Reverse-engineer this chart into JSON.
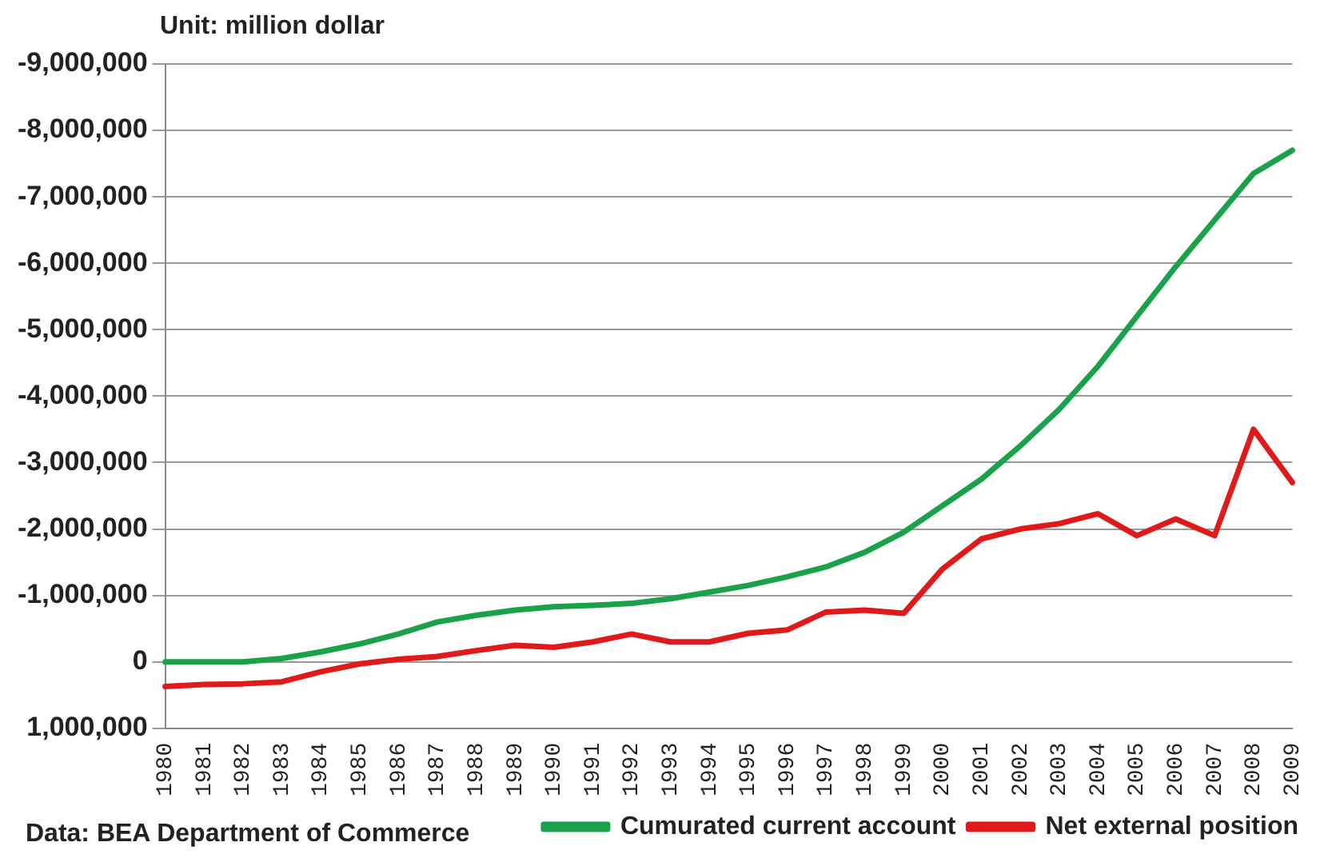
{
  "chart_data": {
    "type": "line",
    "ylabel": "Unit: million dollar",
    "annotations": [
      "Data: BEA Department of Commerce"
    ],
    "categories": [
      "1980",
      "1981",
      "1982",
      "1983",
      "1984",
      "1985",
      "1986",
      "1987",
      "1988",
      "1989",
      "1990",
      "1991",
      "1992",
      "1993",
      "1994",
      "1995",
      "1996",
      "1997",
      "1998",
      "1999",
      "2000",
      "2001",
      "2002",
      "2003",
      "2004",
      "2005",
      "2006",
      "2007",
      "2008",
      "2009"
    ],
    "series": [
      {
        "name": "Cumurated current account",
        "color": "#1aa24a",
        "values": [
          0,
          0,
          0,
          -50000,
          -150000,
          -270000,
          -420000,
          -600000,
          -700000,
          -780000,
          -830000,
          -850000,
          -880000,
          -950000,
          -1050000,
          -1150000,
          -1280000,
          -1430000,
          -1650000,
          -1950000,
          -2350000,
          -2750000,
          -3250000,
          -3800000,
          -4450000,
          -5200000,
          -5950000,
          -6650000,
          -7350000,
          -7700000
        ]
      },
      {
        "name": "Net external position",
        "color": "#e01a1a",
        "values": [
          370000,
          340000,
          330000,
          300000,
          150000,
          30000,
          -40000,
          -80000,
          -170000,
          -250000,
          -220000,
          -300000,
          -420000,
          -300000,
          -300000,
          -430000,
          -480000,
          -750000,
          -780000,
          -730000,
          -1400000,
          -1850000,
          -2000000,
          -2080000,
          -2230000,
          -1900000,
          -2150000,
          -1900000,
          -3500000,
          -2700000
        ]
      }
    ],
    "ylim": [
      1000000,
      -9000000
    ],
    "yticks": [
      {
        "value": 1000000,
        "label": "1,000,000"
      },
      0,
      {
        "value": -1000000,
        "label": "-1,000,000"
      },
      {
        "value": -2000000,
        "label": "-2,000,000"
      },
      {
        "value": -3000000,
        "label": "-3,000,000"
      },
      {
        "value": -4000000,
        "label": "-4,000,000"
      },
      {
        "value": -5000000,
        "label": "-5,000,000"
      },
      {
        "value": -6000000,
        "label": "-6,000,000"
      },
      {
        "value": -7000000,
        "label": "-7,000,000"
      },
      {
        "value": -8000000,
        "label": "-8,000,000"
      },
      {
        "value": -9000000,
        "label": "-9,000,000"
      }
    ],
    "grid": "y",
    "legend": "bottom right",
    "line_style": "solid"
  }
}
